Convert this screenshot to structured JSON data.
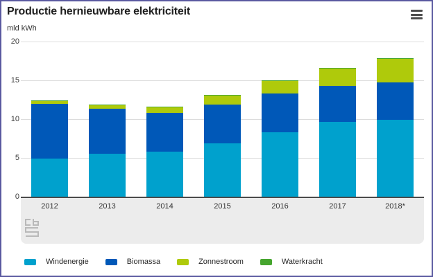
{
  "header": {
    "title": "Productie hernieuwbare elektriciteit",
    "unit_label": "mld kWh"
  },
  "chart_data": {
    "type": "bar",
    "stacked": true,
    "title": "Productie hernieuwbare elektriciteit",
    "ylabel": "mld kWh",
    "xlabel": "",
    "categories": [
      "2012",
      "2013",
      "2014",
      "2015",
      "2016",
      "2017",
      "2018*"
    ],
    "series": [
      {
        "name": "Windenergie",
        "color": "#00a1cd",
        "values": [
          4.9,
          5.5,
          5.8,
          6.9,
          8.3,
          9.6,
          9.9
        ]
      },
      {
        "name": "Biomassa",
        "color": "#0058b8",
        "values": [
          7.1,
          5.8,
          5.0,
          5.0,
          5.0,
          4.7,
          4.8
        ]
      },
      {
        "name": "Zonnestroom",
        "color": "#afca0b",
        "values": [
          0.3,
          0.5,
          0.7,
          1.1,
          1.6,
          2.2,
          3.1
        ]
      },
      {
        "name": "Waterkracht",
        "color": "#46a52e",
        "values": [
          0.1,
          0.1,
          0.1,
          0.1,
          0.1,
          0.1,
          0.1
        ]
      }
    ],
    "ylim": [
      0,
      20
    ],
    "yticks": [
      0,
      5,
      10,
      15,
      20
    ],
    "grid": true,
    "legend_position": "bottom"
  },
  "colors": {
    "frame_border": "#5a59a0",
    "axis_line": "#4b4b4b",
    "gridline": "#dcdcdc",
    "x_strip_background": "#ececec",
    "logo_gray": "#b9b9b9",
    "text_dark": "#1f1f1f"
  },
  "icons": {
    "menu": "hamburger-menu-icon",
    "logo": "cbs-logo"
  }
}
